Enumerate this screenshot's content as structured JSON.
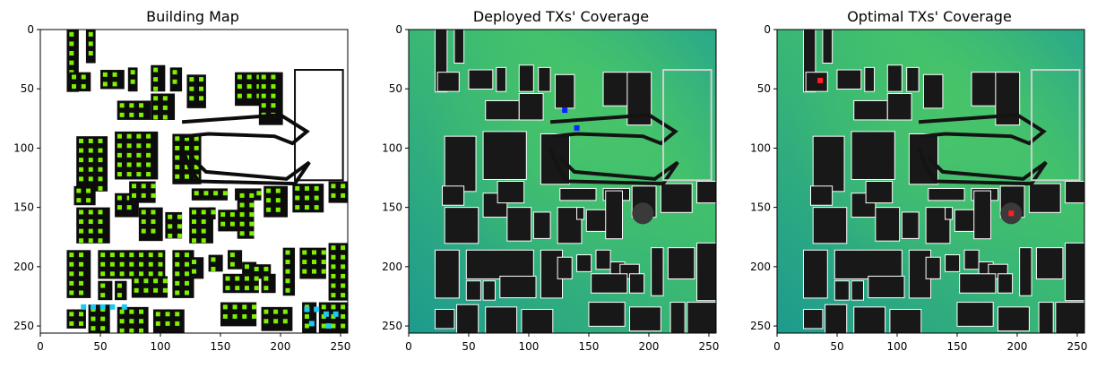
{
  "figure": {
    "panels": [
      "Building Map",
      "Deployed TXs' Coverage",
      "Optimal TXs' Coverage"
    ]
  },
  "colors": {
    "building": "#141414",
    "open_space": "#ffffff",
    "candidate_marker": "#7ef000",
    "selected_marker": "#1ec8f0",
    "deployed_tx": "#1020ff",
    "optimal_tx": "#ff2020",
    "coverage_low": "#1e9e8e",
    "coverage_high": "#3ec46c",
    "outline": "#ffffff"
  },
  "chart_data": [
    {
      "type": "heatmap",
      "title": "Building Map",
      "xlabel": "",
      "ylabel": "",
      "xlim": [
        0,
        256
      ],
      "ylim": [
        256,
        0
      ],
      "xticks": [
        0,
        50,
        100,
        150,
        200,
        250
      ],
      "yticks": [
        0,
        50,
        100,
        150,
        200,
        250
      ],
      "legend": "none",
      "grid": false
    },
    {
      "type": "heatmap",
      "title": "Deployed TXs' Coverage",
      "xlabel": "",
      "ylabel": "",
      "xlim": [
        0,
        256
      ],
      "ylim": [
        256,
        0
      ],
      "xticks": [
        0,
        50,
        100,
        150,
        200,
        250
      ],
      "yticks": [
        0,
        50,
        100,
        150,
        200,
        250
      ],
      "transmitters": [
        {
          "x": 130,
          "y": 68
        },
        {
          "x": 140,
          "y": 83
        }
      ],
      "legend": "none",
      "grid": false
    },
    {
      "type": "heatmap",
      "title": "Optimal TXs' Coverage",
      "xlabel": "",
      "ylabel": "",
      "xlim": [
        0,
        256
      ],
      "ylim": [
        256,
        0
      ],
      "xticks": [
        0,
        50,
        100,
        150,
        200,
        250
      ],
      "yticks": [
        0,
        50,
        100,
        150,
        200,
        250
      ],
      "transmitters": [
        {
          "x": 195,
          "y": 155
        },
        {
          "x": 36,
          "y": 43
        }
      ],
      "legend": "none",
      "grid": false
    }
  ]
}
